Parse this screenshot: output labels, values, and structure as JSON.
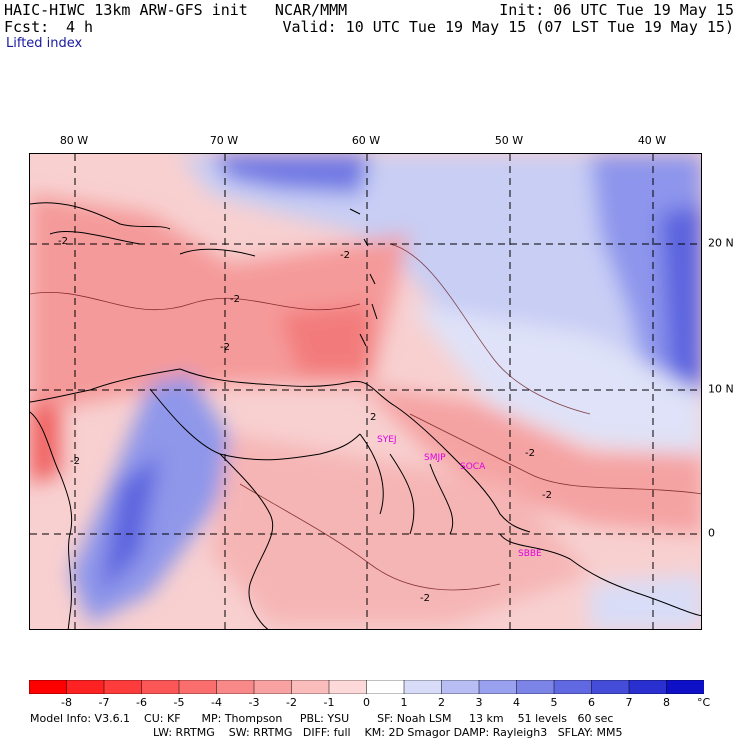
{
  "header": {
    "title_left": "HAIC-HIWC 13km ARW-GFS init   NCAR/MMM",
    "fcst_label": "Fcst:",
    "fcst_value": "4 h",
    "init": "Init: 06 UTC Tue 19 May 15",
    "valid": "Valid: 10 UTC Tue 19 May 15 (07 LST Tue 19 May 15)",
    "field": "Lifted index"
  },
  "map": {
    "lon_labels": [
      "80 W",
      "70 W",
      "60 W",
      "50 W",
      "40 W"
    ],
    "lat_labels": [
      "20 N",
      "10 N",
      "0"
    ],
    "contour_labels": [
      "-2",
      "-2",
      "-2",
      "-2",
      "-2",
      "-2",
      "2",
      "-2",
      "-2"
    ],
    "stations": [
      "SYEJ",
      "SMJP",
      "SOCA",
      "SBBE"
    ]
  },
  "colorbar": {
    "unit": "°C",
    "ticks": [
      "-8",
      "-7",
      "-6",
      "-5",
      "-4",
      "-3",
      "-2",
      "-1",
      "0",
      "1",
      "2",
      "3",
      "4",
      "5",
      "6",
      "7",
      "8"
    ],
    "colors": [
      "#ff0000",
      "#ff2b2b",
      "#ff4646",
      "#fd5c5c",
      "#fb7474",
      "#f98f8f",
      "#faa9a9",
      "#fcc9c9",
      "#ffffff",
      "#d4d8f8",
      "#b4baf4",
      "#979eee",
      "#7a82e8",
      "#5e66e2",
      "#424ad8",
      "#2a30d0",
      "#0e10c8"
    ]
  },
  "footer": {
    "line1": "Model Info: V3.6.1    CU: KF      MP: Thompson     PBL: YSU        SF: Noah LSM     13 km    51 levels   60 sec",
    "line2": "LW: RRTMG    SW: RRTMG   DIFF: full    KM: 2D Smagor DAMP: Rayleigh3   SFLAY: MM5"
  }
}
